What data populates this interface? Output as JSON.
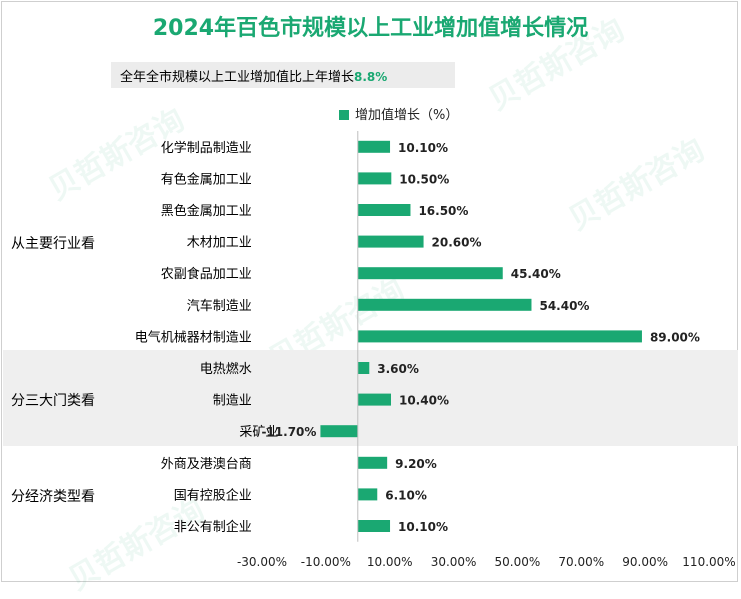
{
  "title": "2024年百色市规模以上工业增加值增长情况",
  "subtitle": {
    "text": "全年全市规模以上工业增加值比上年增长",
    "value": "8.8%"
  },
  "legend_label": "增加值增长（%）",
  "groups": [
    "从主要行业看",
    "分三大门类看",
    "分经济类型看"
  ],
  "watermark": "贝哲斯咨询",
  "colors": {
    "bar": "#1aa872",
    "band": "#efefef"
  },
  "chart_data": {
    "type": "bar",
    "orientation": "horizontal",
    "categories": [
      "化学制品制造业",
      "有色金属加工业",
      "黑色金属加工业",
      "木材加工业",
      "农副食品加工业",
      "汽车制造业",
      "电气机械器材制造业",
      "电热燃水",
      "制造业",
      "采矿业",
      "外商及港澳台商",
      "国有控股企业",
      "非公有制企业"
    ],
    "series": [
      {
        "name": "增加值增长（%）",
        "values": [
          10.1,
          10.5,
          16.5,
          20.6,
          45.4,
          54.4,
          89.0,
          3.6,
          10.4,
          -11.7,
          9.2,
          6.1,
          10.1
        ]
      }
    ],
    "value_labels": [
      "10.10%",
      "10.50%",
      "16.50%",
      "20.60%",
      "45.40%",
      "54.40%",
      "89.00%",
      "3.60%",
      "10.40%",
      "-11.70%",
      "9.20%",
      "6.10%",
      "10.10%"
    ],
    "group_spans": [
      {
        "group": "从主要行业看",
        "count": 7
      },
      {
        "group": "分三大门类看",
        "count": 3
      },
      {
        "group": "分经济类型看",
        "count": 3
      }
    ],
    "xlim": [
      -30,
      110
    ],
    "xticks": [
      -30,
      -10,
      10,
      30,
      50,
      70,
      90,
      110
    ],
    "xtick_labels": [
      "-30.00%",
      "-10.00%",
      "10.00%",
      "30.00%",
      "50.00%",
      "70.00%",
      "90.00%",
      "110.00%"
    ],
    "grid": false,
    "legend_position": "top"
  }
}
